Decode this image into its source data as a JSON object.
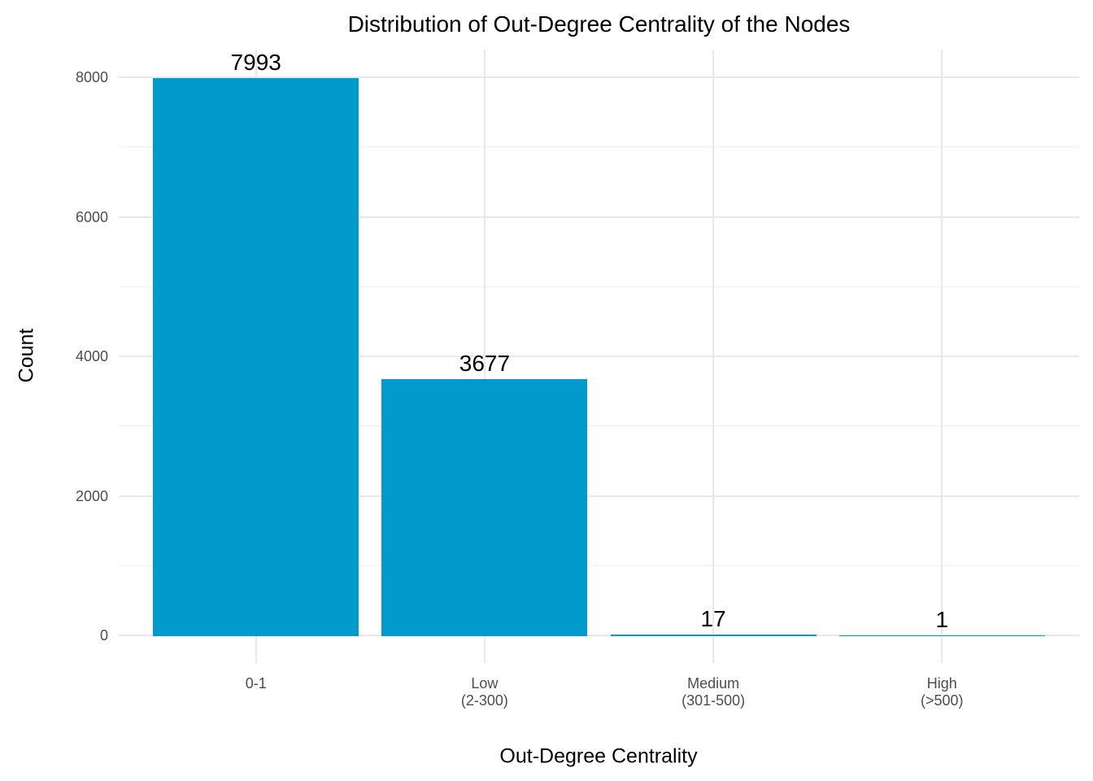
{
  "chart_data": {
    "type": "bar",
    "title": "Distribution of Out-Degree Centrality of the Nodes",
    "xlabel": "Out-Degree Centrality",
    "ylabel": "Count",
    "categories": [
      "0-1",
      "Low\n(2-300)",
      "Medium\n(301-500)",
      "High\n(>500)"
    ],
    "values": [
      7993,
      3677,
      17,
      1
    ],
    "bar_labels": [
      "7993",
      "3677",
      "17",
      "1"
    ],
    "yticks": [
      0,
      2000,
      4000,
      6000,
      8000
    ],
    "yticks_minor": [
      1000,
      3000,
      5000,
      7000
    ],
    "ylim": [
      0,
      8392
    ],
    "grid": "major-and-minor-horizontal, major-vertical-at-categories",
    "legend": "none",
    "colors": {
      "bar_fill": "#009ACD",
      "grid_major": "#E8E8E8",
      "grid_minor": "#F0F0F0",
      "axis_text": "#4D4D4D",
      "title_text": "#000000",
      "background": "#FFFFFF"
    }
  }
}
